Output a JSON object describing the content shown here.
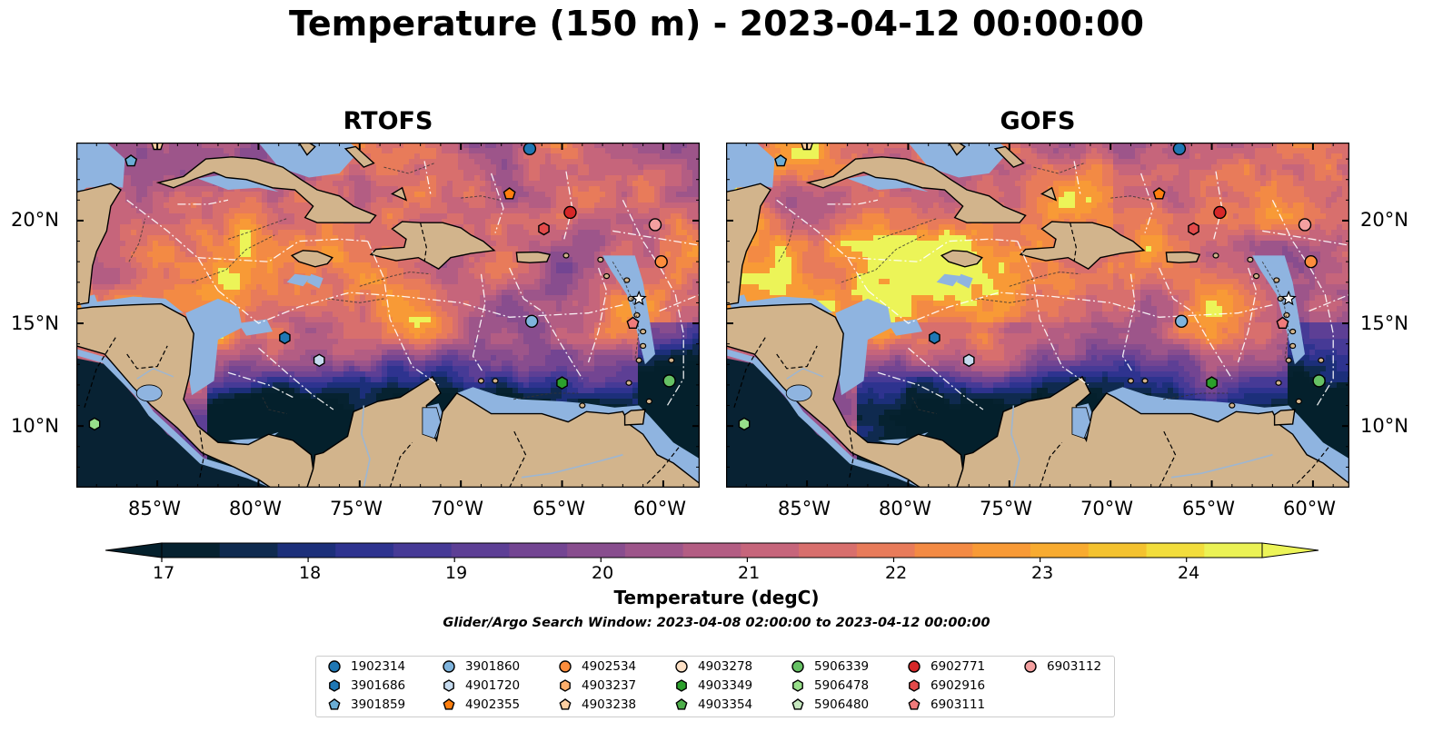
{
  "title": "Temperature (150 m) - 2023-04-12 00:00:00",
  "panels": [
    {
      "title": "RTOFS",
      "variant": 0
    },
    {
      "title": "GOFS",
      "variant": 1
    }
  ],
  "lon_ticks": [
    "85°W",
    "80°W",
    "75°W",
    "70°W",
    "65°W",
    "60°W"
  ],
  "lat_ticks": [
    "20°N",
    "15°N",
    "10°N"
  ],
  "colorbar": {
    "label": "Temperature (degC)",
    "ticks": [
      "17",
      "18",
      "19",
      "20",
      "21",
      "22",
      "23",
      "24"
    ],
    "colors": [
      "#062230",
      "#0f2a4f",
      "#1c2f7a",
      "#2e338f",
      "#463a96",
      "#5d3f95",
      "#734592",
      "#884d8e",
      "#9d558a",
      "#b35d83",
      "#c6657b",
      "#d86f6d",
      "#e87b5a",
      "#f38a44",
      "#f89a36",
      "#f8ab30",
      "#f4c22f",
      "#f2dd3c",
      "#ebf255"
    ],
    "extend_low": "#04202c",
    "extend_high": "#ecf458"
  },
  "colors": {
    "land": "#d2b48c",
    "shelf": "#8fb4e0",
    "deep_cold": "#082233"
  },
  "search_window": "Glider/Argo Search Window: 2023-04-08 02:00:00 to 2023-04-12 00:00:00",
  "legend": [
    {
      "id": "1902314",
      "marker": "circle",
      "color": "#1f77b4"
    },
    {
      "id": "3901686",
      "marker": "hexagon",
      "color": "#1f77b4"
    },
    {
      "id": "3901859",
      "marker": "pentagon",
      "color": "#6baed6"
    },
    {
      "id": "3901860",
      "marker": "circle",
      "color": "#7fb4dd"
    },
    {
      "id": "4901720",
      "marker": "hexagon",
      "color": "#c6dbef"
    },
    {
      "id": "4902355",
      "marker": "pentagon",
      "color": "#ff7f0e"
    },
    {
      "id": "4902534",
      "marker": "circle",
      "color": "#fd8d3c"
    },
    {
      "id": "4903237",
      "marker": "hexagon",
      "color": "#fdae6b"
    },
    {
      "id": "4903238",
      "marker": "pentagon",
      "color": "#fdd0a2"
    },
    {
      "id": "4903278",
      "marker": "circle",
      "color": "#fde0c5"
    },
    {
      "id": "4903349",
      "marker": "hexagon",
      "color": "#2ca02c"
    },
    {
      "id": "4903354",
      "marker": "pentagon",
      "color": "#4daf4a"
    },
    {
      "id": "5906339",
      "marker": "circle",
      "color": "#66c164"
    },
    {
      "id": "5906478",
      "marker": "hexagon",
      "color": "#98df8a"
    },
    {
      "id": "5906480",
      "marker": "pentagon",
      "color": "#c7e9c0"
    },
    {
      "id": "6902771",
      "marker": "circle",
      "color": "#d62728"
    },
    {
      "id": "6902916",
      "marker": "hexagon",
      "color": "#e34a4a"
    },
    {
      "id": "6903111",
      "marker": "pentagon",
      "color": "#f07b7b"
    },
    {
      "id": "6903112",
      "marker": "circle",
      "color": "#f4a0a0"
    }
  ],
  "map_markers": [
    {
      "id": "3901859",
      "lon": -86.3,
      "lat": 22.9
    },
    {
      "id": "4903238",
      "lon": -85.0,
      "lat": 23.7
    },
    {
      "id": "1902314",
      "lon": -66.6,
      "lat": 23.5
    },
    {
      "id": "4902355",
      "lon": -67.6,
      "lat": 21.3
    },
    {
      "id": "6902771",
      "lon": -64.6,
      "lat": 20.4
    },
    {
      "id": "6902916",
      "lon": -65.9,
      "lat": 19.6
    },
    {
      "id": "6903112",
      "lon": -60.4,
      "lat": 19.8
    },
    {
      "id": "4902534",
      "lon": -60.1,
      "lat": 18.0
    },
    {
      "id": "3901860",
      "lon": -66.5,
      "lat": 15.1
    },
    {
      "id": "6903111",
      "lon": -61.5,
      "lat": 15.0
    },
    {
      "id": "3901686",
      "lon": -78.7,
      "lat": 14.3
    },
    {
      "id": "4901720",
      "lon": -77.0,
      "lat": 13.2
    },
    {
      "id": "4903349",
      "lon": -65.0,
      "lat": 12.1
    },
    {
      "id": "5906339",
      "lon": -59.7,
      "lat": 12.2
    },
    {
      "id": "5906478",
      "lon": -88.1,
      "lat": 10.1
    }
  ]
}
